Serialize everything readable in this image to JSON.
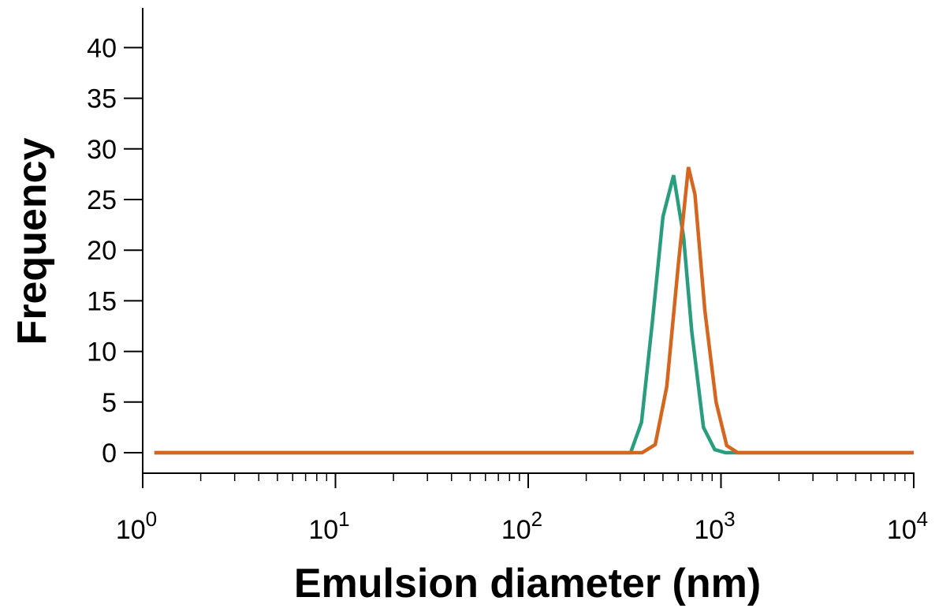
{
  "chart_data": {
    "type": "line",
    "title": "",
    "xlabel": "Emulsion diameter (nm)",
    "ylabel": "Frequency",
    "x_scale": "log",
    "xlim": [
      1,
      10000
    ],
    "ylim": [
      -2,
      43
    ],
    "grid": false,
    "legend": "none",
    "x_tick_labels": [
      {
        "value": 1,
        "base": "10",
        "exp": "0"
      },
      {
        "value": 10,
        "base": "10",
        "exp": "1"
      },
      {
        "value": 100,
        "base": "10",
        "exp": "2"
      },
      {
        "value": 1000,
        "base": "10",
        "exp": "3"
      },
      {
        "value": 10000,
        "base": "10",
        "exp": "4"
      }
    ],
    "y_ticks": [
      0,
      5,
      10,
      15,
      20,
      25,
      30,
      35,
      40
    ],
    "series": [
      {
        "color": "#2a9d7f",
        "x": [
          1.15,
          340,
          387,
          441,
          500,
          568,
          640,
          705,
          811,
          928,
          1055,
          1190,
          1350,
          10000
        ],
        "y": [
          0,
          0,
          3,
          13,
          23.3,
          27.4,
          21.3,
          12,
          2.5,
          0.3,
          0,
          0,
          0,
          0
        ]
      },
      {
        "color": "#d4661f",
        "x": [
          1.15,
          390,
          456,
          523,
          600,
          678,
          733,
          825,
          943,
          1071,
          1222,
          1422,
          10000
        ],
        "y": [
          0,
          0,
          0.8,
          6.5,
          18.5,
          28.2,
          25.5,
          14,
          5,
          0.7,
          0,
          0,
          0
        ]
      }
    ]
  }
}
